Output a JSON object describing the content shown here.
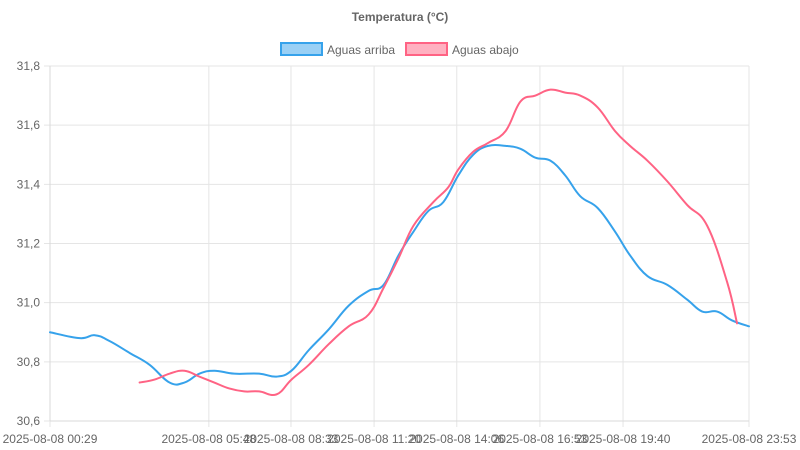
{
  "chart_data": {
    "type": "line",
    "title": "Temperatura (°C)",
    "xlabel": "",
    "ylabel": "",
    "ylim": [
      30.6,
      31.8
    ],
    "y_ticks": [
      "31,8",
      "31,6",
      "31,4",
      "31,2",
      "31,0",
      "30,8",
      "30,6"
    ],
    "x_ticks": [
      {
        "t": 0,
        "label": "2025-08-08 00:29"
      },
      {
        "t": 319,
        "label": "2025-08-08 05:48"
      },
      {
        "t": 484,
        "label": "2025-08-08 08:33"
      },
      {
        "t": 651,
        "label": "2025-08-08 11:20"
      },
      {
        "t": 817,
        "label": "2025-08-08 14:06"
      },
      {
        "t": 984,
        "label": "2025-08-08 16:53"
      },
      {
        "t": 1151,
        "label": "2025-08-08 19:40"
      },
      {
        "t": 1404,
        "label": "2025-08-08 23:53"
      }
    ],
    "x_range": [
      0,
      1404
    ],
    "grid": true,
    "legend_position": "top",
    "series": [
      {
        "name": "Aguas arriba",
        "color": "#36a2eb",
        "fill": "#9ad0f5",
        "t": [
          0,
          60,
          90,
          120,
          160,
          200,
          240,
          270,
          300,
          330,
          370,
          420,
          455,
          485,
          520,
          560,
          600,
          640,
          670,
          700,
          730,
          760,
          790,
          820,
          850,
          880,
          915,
          945,
          975,
          1005,
          1035,
          1065,
          1100,
          1135,
          1165,
          1200,
          1240,
          1280,
          1310,
          1340,
          1370,
          1404
        ],
        "values": [
          30.9,
          30.88,
          30.89,
          30.87,
          30.83,
          30.79,
          30.73,
          30.73,
          30.76,
          30.77,
          30.76,
          30.76,
          30.75,
          30.77,
          30.84,
          30.91,
          30.99,
          31.04,
          31.06,
          31.16,
          31.24,
          31.31,
          31.34,
          31.43,
          31.5,
          31.53,
          31.53,
          31.52,
          31.49,
          31.48,
          31.43,
          31.36,
          31.32,
          31.24,
          31.16,
          31.09,
          31.06,
          31.01,
          30.97,
          30.97,
          30.94,
          30.92
        ]
      },
      {
        "name": "Aguas abajo",
        "color": "#ff6384",
        "fill": "#ffb1c1",
        "t": [
          180,
          210,
          240,
          270,
          300,
          330,
          360,
          390,
          420,
          455,
          485,
          520,
          560,
          600,
          640,
          670,
          700,
          730,
          770,
          800,
          820,
          850,
          880,
          915,
          945,
          975,
          1005,
          1035,
          1065,
          1100,
          1135,
          1165,
          1200,
          1240,
          1280,
          1320,
          1360,
          1380
        ],
        "values": [
          30.73,
          30.74,
          30.76,
          30.77,
          30.75,
          30.73,
          30.71,
          30.7,
          30.7,
          30.69,
          30.74,
          30.79,
          30.86,
          30.92,
          30.96,
          31.05,
          31.15,
          31.26,
          31.34,
          31.39,
          31.45,
          31.51,
          31.54,
          31.58,
          31.68,
          31.7,
          31.72,
          31.71,
          31.7,
          31.66,
          31.58,
          31.53,
          31.48,
          31.41,
          31.33,
          31.26,
          31.07,
          30.93
        ]
      }
    ]
  }
}
